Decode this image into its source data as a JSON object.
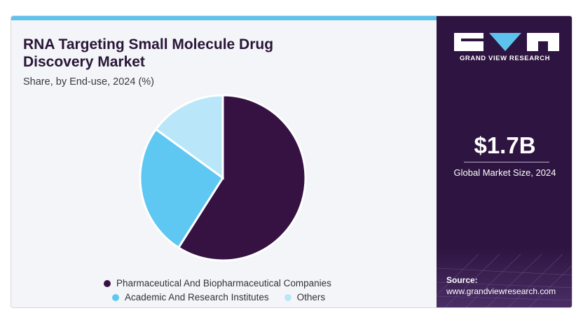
{
  "header": {
    "title": "RNA Targeting Small Molecule Drug Discovery Market",
    "subtitle": "Share, by End-use, 2024 (%)"
  },
  "chart_data": {
    "type": "pie",
    "title": "RNA Targeting Small Molecule Drug Discovery Market",
    "subtitle": "Share, by End-use, 2024 (%)",
    "categories": [
      "Pharmaceutical And Biopharmaceutical Companies",
      "Academic And Research Institutes",
      "Others"
    ],
    "values": [
      59,
      26,
      15
    ],
    "colors": [
      "#361243",
      "#5ec8f2",
      "#b9e6f8"
    ],
    "legend_position": "bottom"
  },
  "sidebar": {
    "brand": "GRAND VIEW RESEARCH",
    "market_size_value": "$1.7B",
    "market_size_label": "Global Market Size, 2024",
    "source_label": "Source:",
    "source_url": "www.grandviewresearch.com"
  },
  "colors": {
    "accent": "#5ec3ec",
    "panel": "#2e1440",
    "title": "#2a1538"
  }
}
